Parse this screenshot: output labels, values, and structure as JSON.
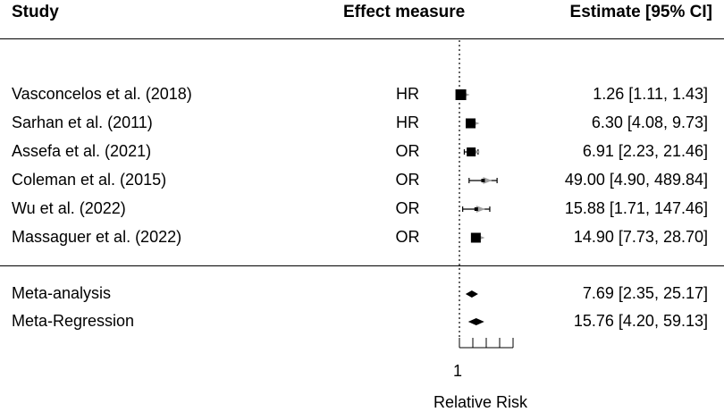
{
  "headers": {
    "study": "Study",
    "measure": "Effect measure",
    "estimate": "Estimate [95% CI]"
  },
  "chart_data": {
    "type": "forest",
    "xlabel": "Relative Risk",
    "x_tick_label": "1",
    "reference_line": 1,
    "studies": [
      {
        "name": "Vasconcelos et al. (2018)",
        "measure": "HR",
        "estimate": 1.26,
        "lower": 1.11,
        "upper": 1.43,
        "text": "1.26 [1.11,   1.43]"
      },
      {
        "name": "Sarhan et al. (2011)",
        "measure": "HR",
        "estimate": 6.3,
        "lower": 4.08,
        "upper": 9.73,
        "text": "6.30 [4.08,   9.73]"
      },
      {
        "name": "Assefa et al. (2021)",
        "measure": "OR",
        "estimate": 6.91,
        "lower": 2.23,
        "upper": 21.46,
        "text": "6.91 [2.23,  21.46]"
      },
      {
        "name": "Coleman et al. (2015)",
        "measure": "OR",
        "estimate": 49.0,
        "lower": 4.9,
        "upper": 489.84,
        "text": "49.00 [4.90, 489.84]"
      },
      {
        "name": "Wu et al. (2022)",
        "measure": "OR",
        "estimate": 15.88,
        "lower": 1.71,
        "upper": 147.46,
        "text": "15.88 [1.71, 147.46]"
      },
      {
        "name": "Massaguer et al. (2022)",
        "measure": "OR",
        "estimate": 14.9,
        "lower": 7.73,
        "upper": 28.7,
        "text": "14.90 [7.73,  28.70]"
      }
    ],
    "summaries": [
      {
        "name": "Meta-analysis",
        "estimate": 7.69,
        "lower": 2.35,
        "upper": 25.17,
        "text": "7.69 [2.35,  25.17]"
      },
      {
        "name": "Meta-Regression",
        "estimate": 15.76,
        "lower": 4.2,
        "upper": 59.13,
        "text": "15.76 [4.20,  59.13]"
      }
    ]
  }
}
